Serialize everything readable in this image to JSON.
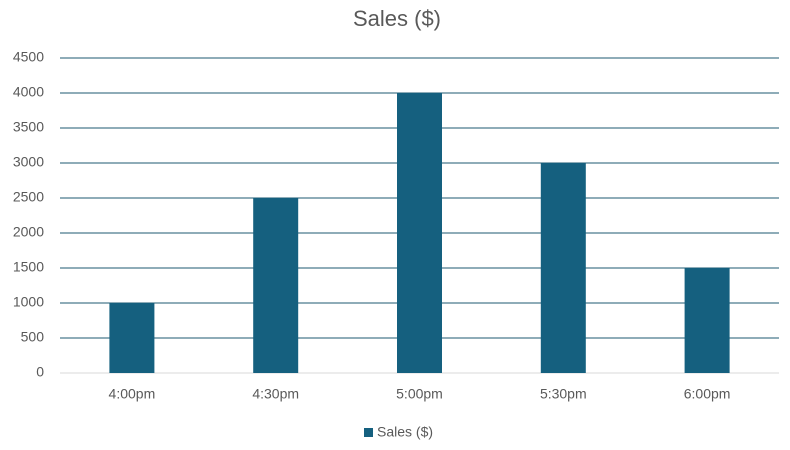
{
  "chart_data": {
    "type": "bar",
    "title": "Sales ($)",
    "categories": [
      "4:00pm",
      "4:30pm",
      "5:00pm",
      "5:30pm",
      "6:00pm"
    ],
    "series": [
      {
        "name": "Sales ($)",
        "color": "#15607f",
        "values": [
          1000,
          2500,
          4000,
          3000,
          1500
        ]
      }
    ],
    "ylim": [
      0,
      4500
    ],
    "yticks": [
      0,
      500,
      1000,
      1500,
      2000,
      2500,
      3000,
      3500,
      4000,
      4500
    ],
    "grid": true,
    "legend": "bottom"
  }
}
